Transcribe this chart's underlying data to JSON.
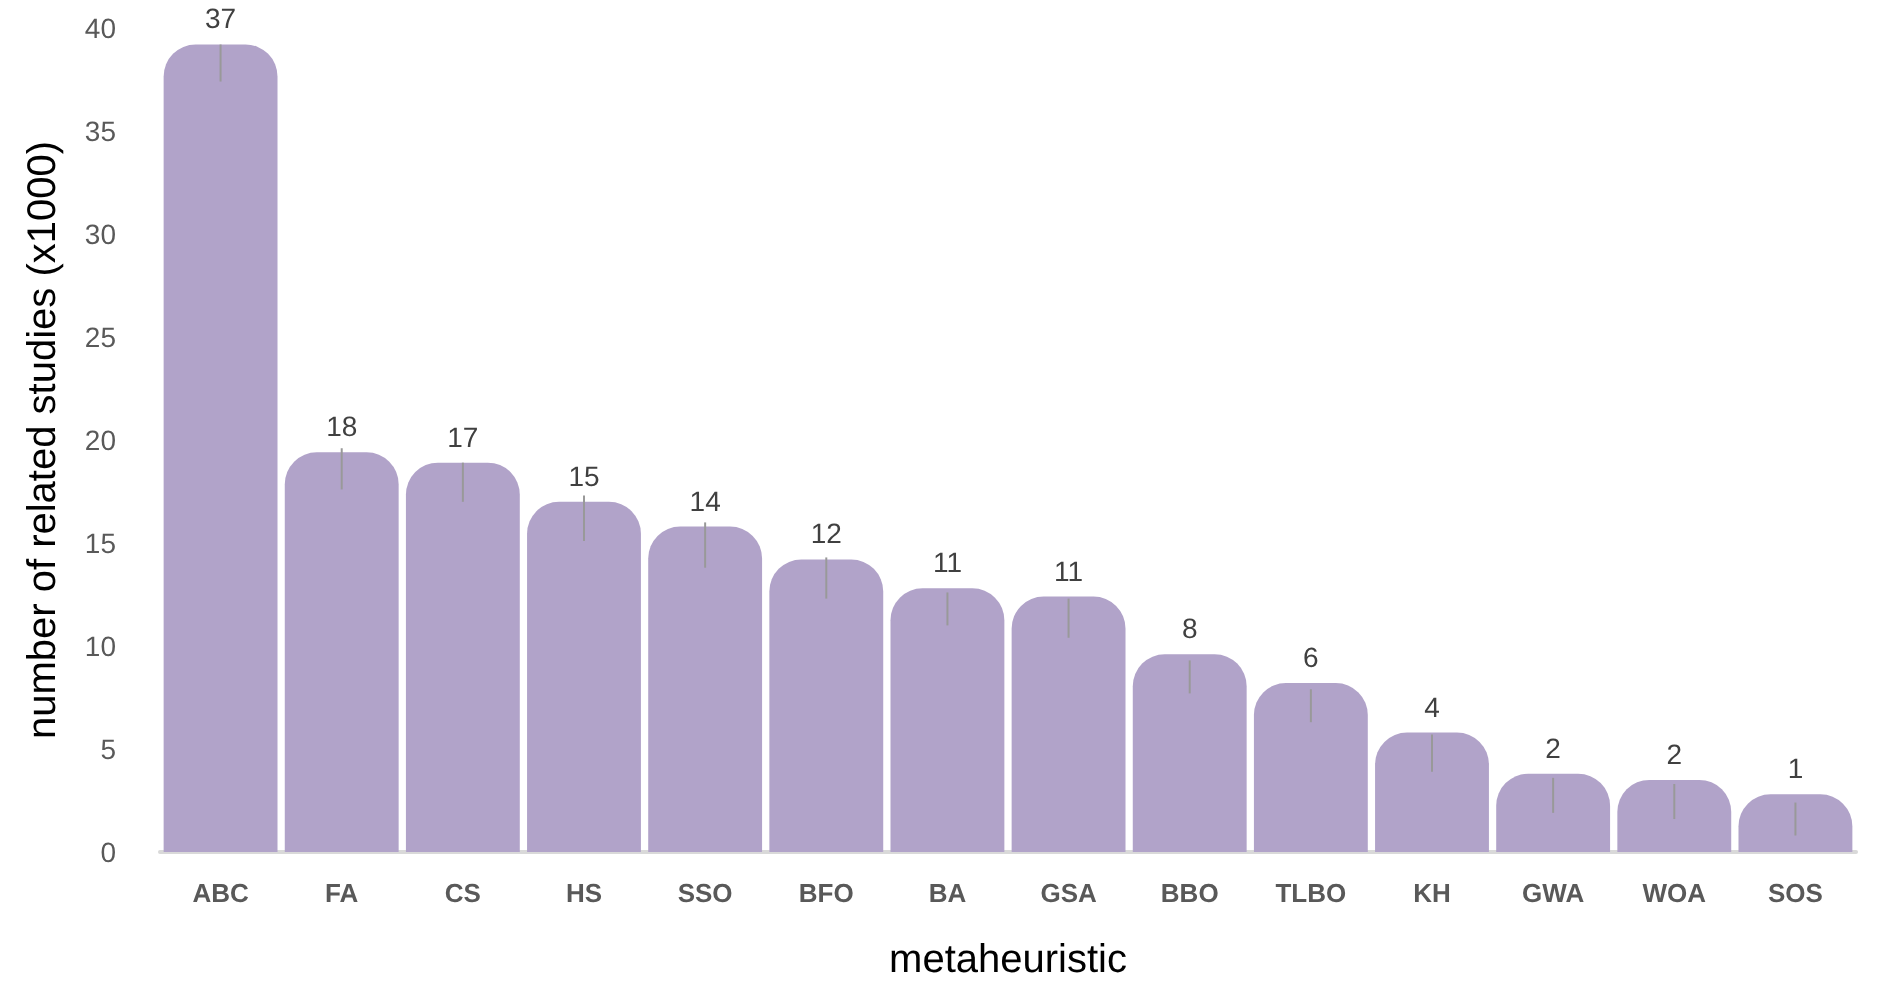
{
  "chart_data": {
    "type": "bar",
    "xlabel": "metaheuristic",
    "ylabel": "number of related studies (x1000)",
    "categories": [
      "ABC",
      "FA",
      "CS",
      "HS",
      "SSO",
      "BFO",
      "BA",
      "GSA",
      "BBO",
      "TLBO",
      "KH",
      "GWA",
      "WOA",
      "SOS"
    ],
    "values": [
      39.2,
      19.4,
      18.9,
      17.0,
      15.8,
      14.2,
      12.8,
      12.4,
      9.6,
      8.2,
      5.8,
      3.8,
      3.5,
      2.8
    ],
    "annotations": [
      {
        "text": "37",
        "x": "ABC",
        "y": 39.2
      },
      {
        "text": "18",
        "x": "FA",
        "y": 19.4
      },
      {
        "text": "17",
        "x": "CS",
        "y": 18.9
      },
      {
        "text": "15",
        "x": "HS",
        "y": 17.0
      },
      {
        "text": "14",
        "x": "SSO",
        "y": 15.8
      },
      {
        "text": "12",
        "x": "BFO",
        "y": 14.2
      },
      {
        "text": "11",
        "x": "BA",
        "y": 12.8
      },
      {
        "text": "11",
        "x": "GSA",
        "y": 12.4
      },
      {
        "text": "8",
        "x": "BBO",
        "y": 9.6
      },
      {
        "text": "6",
        "x": "TLBO",
        "y": 8.2
      },
      {
        "text": "4",
        "x": "KH",
        "y": 5.8
      },
      {
        "text": "2",
        "x": "GWA",
        "y": 3.8
      },
      {
        "text": "2",
        "x": "WOA",
        "y": 3.5
      },
      {
        "text": "1",
        "x": "SOS",
        "y": 2.8
      }
    ],
    "errors": [
      [
        37.4,
        39.2
      ],
      [
        17.6,
        19.6
      ],
      [
        17.0,
        18.9
      ],
      [
        15.1,
        17.3
      ],
      [
        13.8,
        16.0
      ],
      [
        12.3,
        14.3
      ],
      [
        11.0,
        12.6
      ],
      [
        10.4,
        12.3
      ],
      [
        7.7,
        9.3
      ],
      [
        6.3,
        7.9
      ],
      [
        3.9,
        5.7
      ],
      [
        1.9,
        3.6
      ],
      [
        1.6,
        3.3
      ],
      [
        0.8,
        2.4
      ]
    ],
    "color": "#b1a3c9",
    "ylim": [
      0,
      40
    ],
    "yticks": [
      0,
      5,
      10,
      15,
      20,
      25,
      30,
      35,
      40
    ],
    "grid": false,
    "legend": false
  }
}
